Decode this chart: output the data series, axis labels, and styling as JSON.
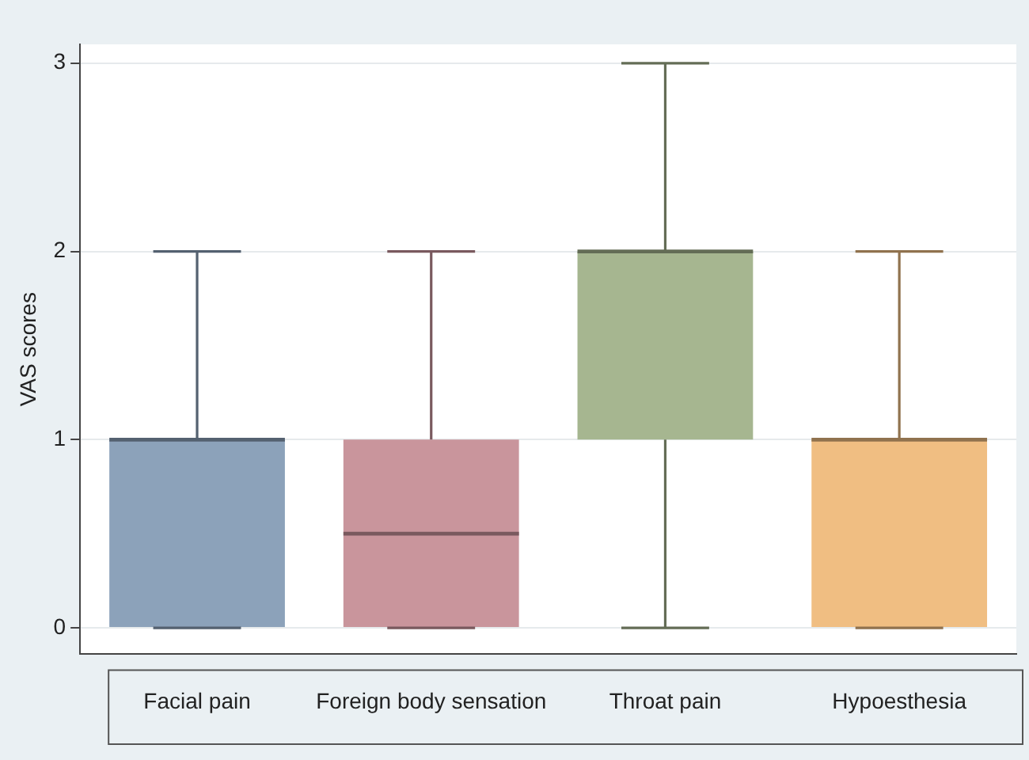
{
  "chart_data": {
    "type": "box",
    "ylabel": "VAS scores",
    "categories": [
      "Facial pain",
      "Foreign body sensation",
      "Throat pain",
      "Hypoesthesia"
    ],
    "boxes": [
      {
        "low": 0,
        "q1": 0,
        "median": 1,
        "q3": 1,
        "high": 2
      },
      {
        "low": 0,
        "q1": 0,
        "median": 0.5,
        "q3": 1,
        "high": 2
      },
      {
        "low": 0,
        "q1": 1,
        "median": 2,
        "q3": 2,
        "high": 3
      },
      {
        "low": 0,
        "q1": 0,
        "median": 1,
        "q3": 1,
        "high": 2
      }
    ],
    "colors": [
      "#8ca2ba",
      "#c9959c",
      "#a6b690",
      "#f0be82"
    ],
    "ylim": [
      -0.14,
      3.1
    ],
    "yticks": [
      0,
      1,
      2,
      3
    ],
    "grid": "y",
    "legend": false
  }
}
